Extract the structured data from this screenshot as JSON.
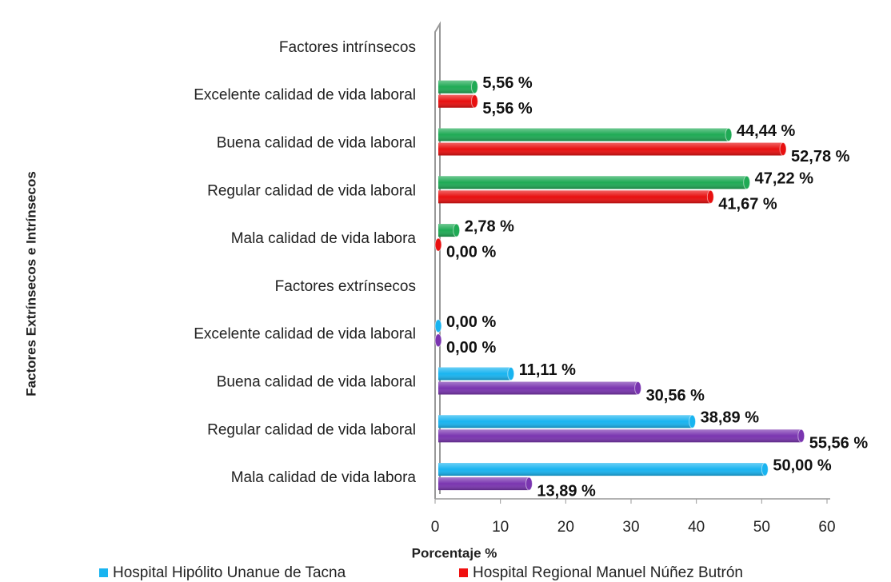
{
  "chart_data": {
    "type": "bar",
    "orientation": "horizontal",
    "x_label": "Porcentaje %",
    "y_label": "Factores Extrínsecos e Intrínsecos",
    "categories": [
      "Mala calidad de vida labora",
      "Regular calidad de vida laboral",
      "Buena calidad de vida laboral",
      "Excelente  calidad de vida laboral",
      "Factores extrínsecos",
      "Mala calidad de vida labora",
      "Regular calidad de vida laboral",
      "Buena calidad de vida laboral",
      "Excelente calidad de vida laboral",
      "Factores intrínsecos"
    ],
    "series": [
      {
        "name": "Hospital Hipólito Unanue de Tacna",
        "color": "#19b4f0",
        "colors": [
          "#19b4f0",
          "#19b4f0",
          "#19b4f0",
          "#19b4f0",
          null,
          "#1faa55",
          "#1faa55",
          "#1faa55",
          "#1faa55",
          null
        ],
        "values": [
          50,
          38.89,
          11.11,
          0,
          null,
          2.78,
          47.22,
          44.44,
          5.56,
          null
        ],
        "value_labels": [
          "50,00 %",
          "38,89 %",
          "11,11 %",
          "0,00 %",
          null,
          "2,78 %",
          "47,22 %",
          "44,44 %",
          "5,56 %",
          null
        ]
      },
      {
        "name": "Hospital Regional Manuel Núñez Butrón",
        "color": "#f01010",
        "colors": [
          "#7a35b0",
          "#7a35b0",
          "#7a35b0",
          "#7a35b0",
          null,
          "#e81010",
          "#e81010",
          "#e81010",
          "#e81010",
          null
        ],
        "values": [
          13.89,
          55.56,
          30.56,
          0,
          null,
          0,
          41.67,
          52.78,
          5.56,
          null
        ],
        "value_labels": [
          "13,89 %",
          "55,56 %",
          "30,56 %",
          "0,00 %",
          null,
          "0,00 %",
          "41,67 %",
          "52,78 %",
          "5,56 %",
          null
        ]
      }
    ],
    "xlim": [
      0,
      60
    ],
    "xticks": [
      0,
      10,
      20,
      30,
      40,
      50,
      60
    ],
    "legend": "bottom"
  }
}
